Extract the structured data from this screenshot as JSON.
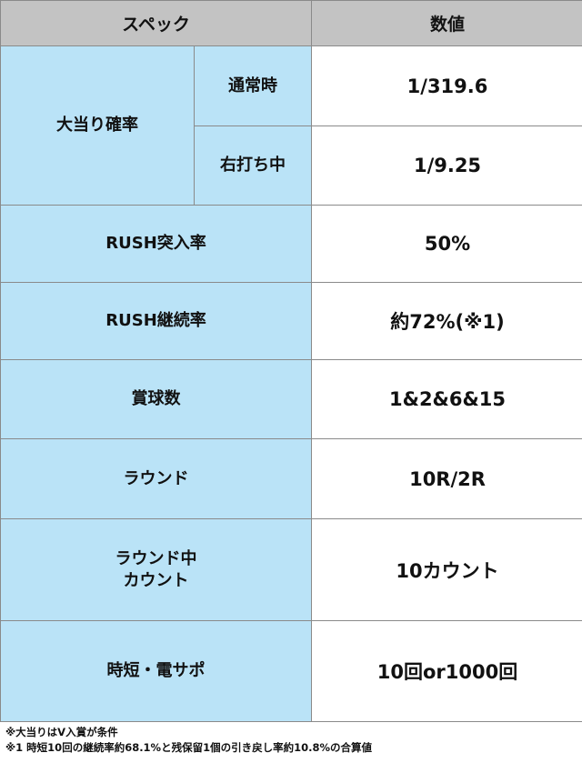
{
  "header": {
    "spec": "スペック",
    "value": "数値"
  },
  "jackpot": {
    "label": "大当り確率",
    "normal_label": "通常時",
    "normal_value": "1/319.6",
    "right_label": "右打ち中",
    "right_value": "1/9.25"
  },
  "rows": [
    {
      "label": "RUSH突入率",
      "value": "50%"
    },
    {
      "label": "RUSH継続率",
      "value": "約72%(※1)"
    },
    {
      "label": "賞球数",
      "value": "1&2&6&15"
    },
    {
      "label": "ラウンド",
      "value": "10R/2R"
    },
    {
      "label_line1": "ラウンド中",
      "label_line2": "カウント",
      "value": "10カウント"
    },
    {
      "label": "時短・電サポ",
      "value": "10回or1000回"
    }
  ],
  "notes": [
    "※大当りはV入賞が条件",
    "※1 時短10回の継続率約68.1%と残保留1個の引き戻し率約10.8%の合算値"
  ]
}
